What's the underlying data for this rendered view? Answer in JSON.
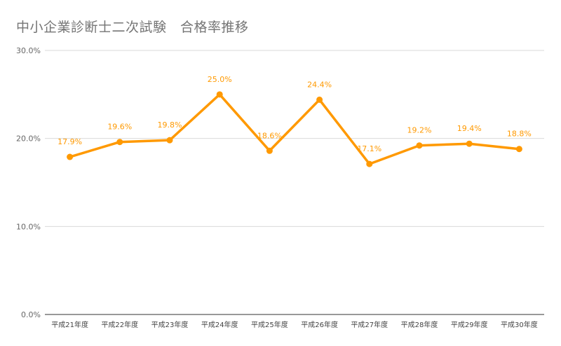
{
  "chart_data": {
    "type": "line",
    "title": "中小企業診断士二次試験　合格率推移",
    "categories": [
      "平成21年度",
      "平成22年度",
      "平成23年度",
      "平成24年度",
      "平成25年度",
      "平成26年度",
      "平成27年度",
      "平成28年度",
      "平成29年度",
      "平成30年度"
    ],
    "series": [
      {
        "values": [
          17.9,
          19.6,
          19.8,
          25.0,
          18.6,
          24.4,
          17.1,
          19.2,
          19.4,
          18.8
        ],
        "labels": [
          "17.9%",
          "19.6%",
          "19.8%",
          "25.0%",
          "18.6%",
          "24.4%",
          "17.1%",
          "19.2%",
          "19.4%",
          "18.8%"
        ],
        "color": "#ff9900"
      }
    ],
    "ylim": [
      0,
      30
    ],
    "yticks": [
      0,
      10,
      20,
      30
    ],
    "ytick_labels": [
      "0.0%",
      "10.0%",
      "20.0%",
      "30.0%"
    ],
    "grid": true,
    "legend": "none"
  }
}
